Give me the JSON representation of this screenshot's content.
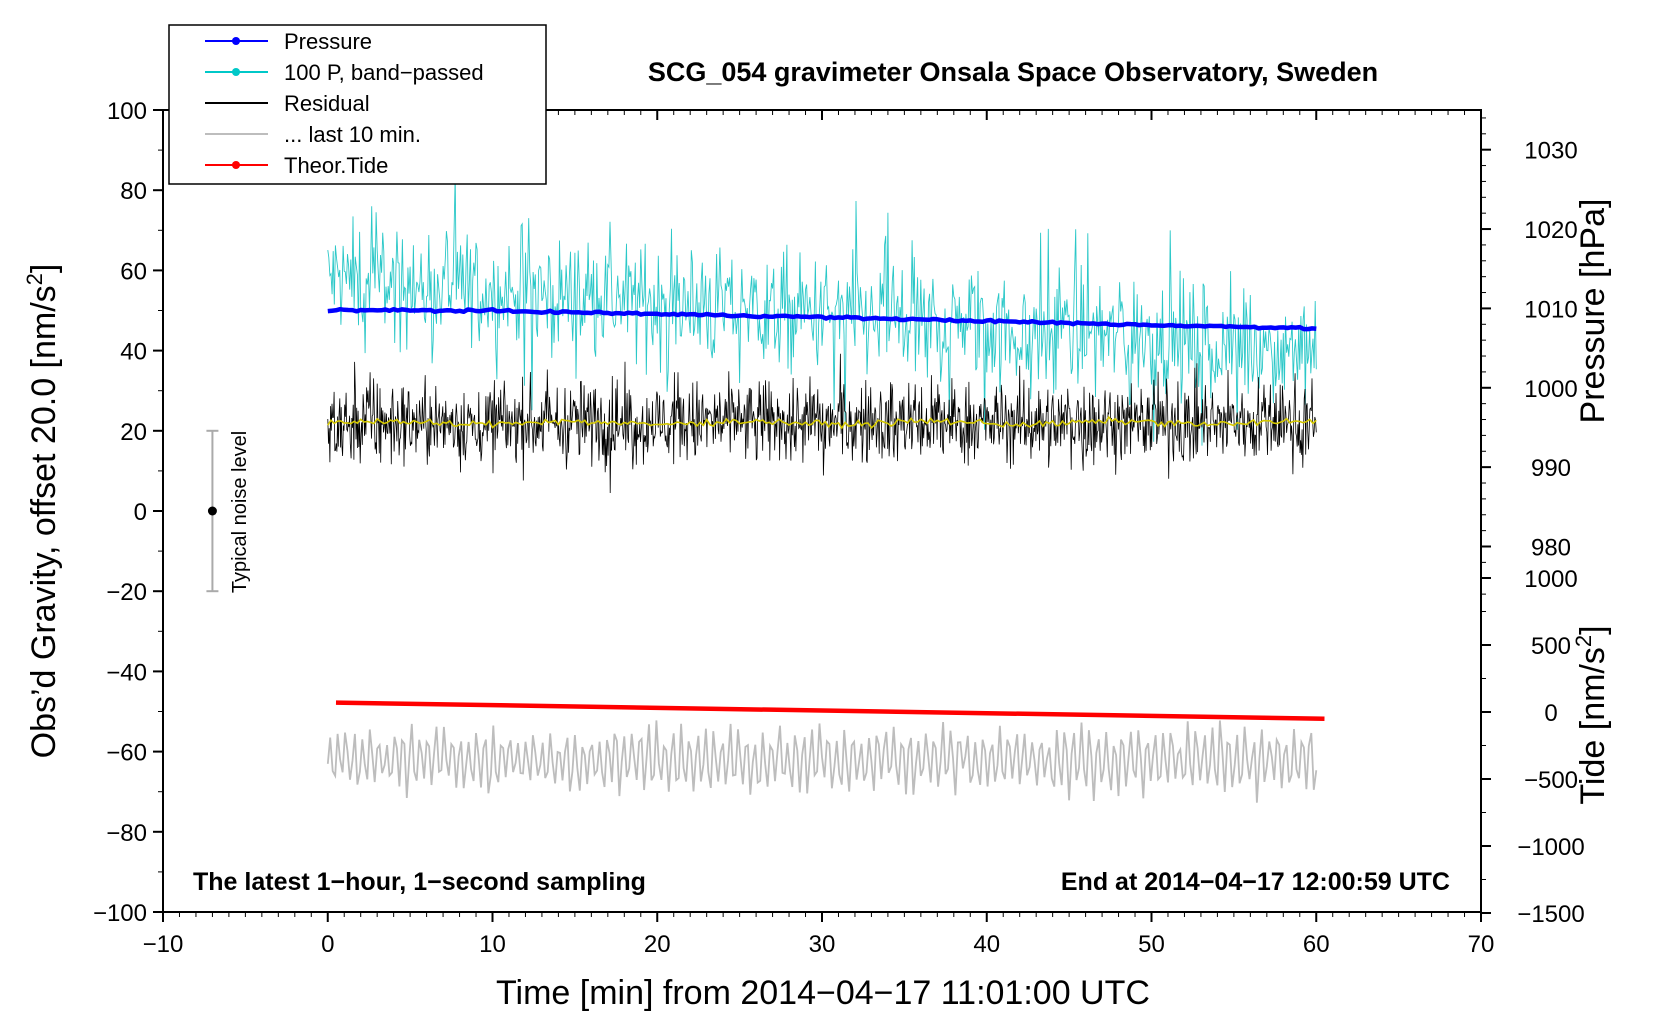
{
  "chart_data": {
    "type": "line",
    "title": "SCG_054 gravimeter Onsala Space Observatory, Sweden",
    "xlabel": "Time [min] from 2014−04−17 11:01:00 UTC",
    "ylabel_left": "Obs’d Gravity, offset 20.0 [nm/s",
    "ylabel_left_sup": "2",
    "ylabel_left_end": "]",
    "ylabel_right_pressure": "Pressure [hPa]",
    "ylabel_right_tide": "Tide [nm/s",
    "ylabel_right_tide_sup": "2",
    "ylabel_right_tide_end": "]",
    "xlim": [
      -10,
      70
    ],
    "ylim": [
      -100,
      100
    ],
    "pressure_ylim": [
      972,
      1035
    ],
    "tide_ylim": [
      -1500,
      1500
    ],
    "x_ticks": [
      -10,
      0,
      10,
      20,
      30,
      40,
      50,
      60,
      70
    ],
    "x_tick_labels": [
      "−10",
      "0",
      "10",
      "20",
      "30",
      "40",
      "50",
      "60",
      "70"
    ],
    "y_ticks": [
      100,
      80,
      60,
      40,
      20,
      0,
      -20,
      -40,
      -60,
      -80,
      -100
    ],
    "y_tick_labels": [
      "100",
      "80",
      "60",
      "40",
      "20",
      "0",
      "−20",
      "−40",
      "−60",
      "−80",
      "−100"
    ],
    "pressure_ticks": [
      1030,
      1020,
      1010,
      1000,
      990,
      980
    ],
    "pressure_tick_labels": [
      "1030",
      "1020",
      "1010",
      "1000",
      "990",
      "980"
    ],
    "tide_ticks": [
      1000,
      500,
      0,
      -500,
      -1000,
      -1500
    ],
    "tide_tick_labels": [
      "1000",
      "500",
      "0",
      "−500",
      "−1000",
      "−1500"
    ],
    "legend": [
      {
        "label": "Pressure",
        "color": "#0000ff",
        "marker": true
      },
      {
        "label": "100 P, band−passed",
        "color": "#00c8c8",
        "marker": true
      },
      {
        "label": "Residual",
        "color": "#000000",
        "marker": false
      },
      {
        "label": "... last 10 min.",
        "color": "#bdbdbd",
        "marker": false
      },
      {
        "label": "Theor.Tide",
        "color": "#ff0000",
        "marker": true
      }
    ],
    "series": [
      {
        "name": "Pressure",
        "axis": "pressure",
        "color": "#0000ff",
        "x": [
          0,
          10,
          20,
          30,
          40,
          50,
          60
        ],
        "values": [
          1009.8,
          1009.7,
          1009.3,
          1008.9,
          1008.4,
          1007.9,
          1007.5
        ]
      },
      {
        "name": "100 P, band-passed",
        "axis": "gravity",
        "color": "#2bc8c8",
        "x_range": [
          0,
          60
        ],
        "mean_start": 58,
        "mean_end": 40,
        "amplitude": 12
      },
      {
        "name": "Residual",
        "axis": "gravity",
        "color": "#000000",
        "x_range": [
          0,
          60
        ],
        "mean": 22,
        "amplitude": 9
      },
      {
        "name": "Residual smoothed",
        "axis": "gravity",
        "color": "#d4c800",
        "x_range": [
          0,
          60
        ],
        "mean": 22
      },
      {
        "name": "... last 10 min.",
        "axis": "gravity",
        "color": "#bdbdbd",
        "x_range": [
          0,
          60
        ],
        "mean": -62,
        "amplitude": 8
      },
      {
        "name": "Theor.Tide",
        "axis": "tide",
        "color": "#ff0000",
        "x": [
          0.5,
          60.5
        ],
        "values": [
          70,
          -50
        ]
      }
    ],
    "noise_bar": {
      "x": -7,
      "center": 0,
      "low": -20,
      "high": 20,
      "label": "Typical noise level"
    },
    "note_left": "The latest 1−hour, 1−second sampling",
    "note_right": "End at 2014−04−17 12:00:59 UTC"
  }
}
